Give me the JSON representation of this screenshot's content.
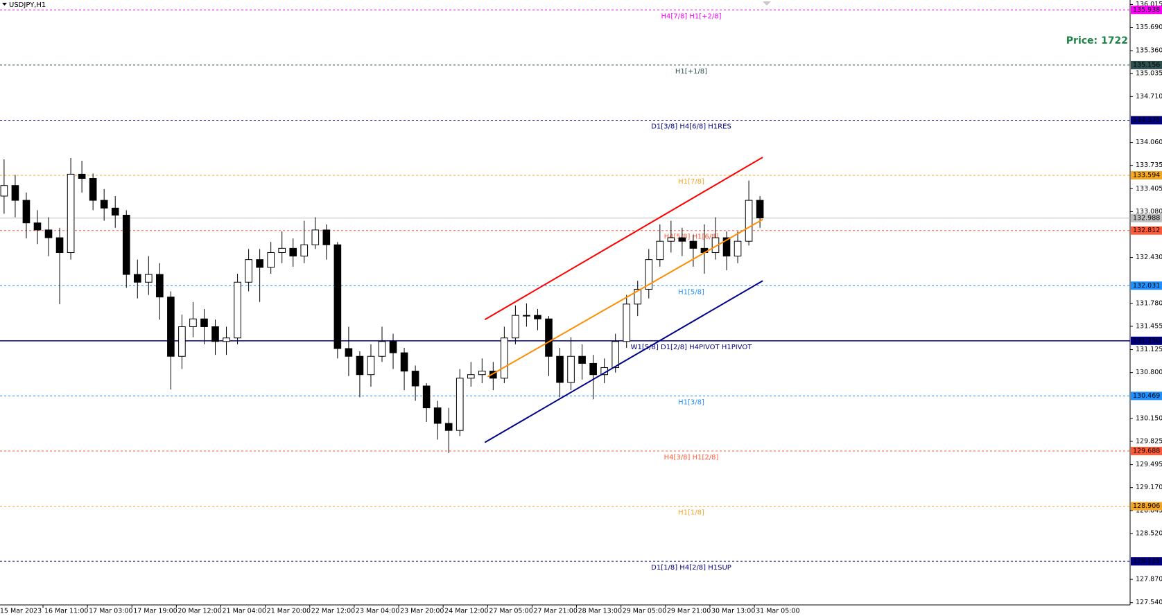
{
  "chart_data": {
    "type": "candlestick",
    "title": "USDJPY,H1",
    "annotation": "Price: 1722",
    "annotation_color": "#1e8449",
    "ylim": [
      127.508,
      136.078
    ],
    "yticks": [
      136.015,
      {
        "value": 135.69,
        "label": "135.690"
      },
      {
        "value": 135.36,
        "label": "135.360"
      },
      135.035,
      {
        "value": 134.71,
        "label": "134.710"
      },
      {
        "value": 134.06,
        "label": "134.060"
      },
      133.735,
      133.405,
      {
        "value": 133.08,
        "label": "133.080"
      },
      {
        "value": 132.43,
        "label": "132.430"
      },
      {
        "value": 131.78,
        "label": "131.780"
      },
      131.455,
      131.125,
      {
        "value": 130.8,
        "label": "130.800"
      },
      {
        "value": 130.15,
        "label": "130.150"
      },
      129.825,
      129.495,
      {
        "value": 129.17,
        "label": "129.170"
      },
      128.845,
      {
        "value": 128.52,
        "label": "128.520"
      },
      {
        "value": 127.87,
        "label": "127.870"
      },
      {
        "value": 127.54,
        "label": "127.540"
      }
    ],
    "xlim": [
      0.53,
      407.2
    ],
    "xticks": [
      {
        "value": 0,
        "label": "15 Mar 2023"
      },
      {
        "value": 16,
        "label": "16 Mar 11:00"
      },
      {
        "value": 32,
        "label": "17 Mar 03:00"
      },
      {
        "value": 48,
        "label": "17 Mar 19:00"
      },
      {
        "value": 64,
        "label": "20 Mar 12:00"
      },
      {
        "value": 80,
        "label": "21 Mar 04:00"
      },
      {
        "value": 96,
        "label": "21 Mar 20:00"
      },
      {
        "value": 112,
        "label": "22 Mar 12:00"
      },
      {
        "value": 128,
        "label": "23 Mar 04:00"
      },
      {
        "value": 144,
        "label": "23 Mar 20:00"
      },
      {
        "value": 160,
        "label": "24 Mar 12:00"
      },
      {
        "value": 176,
        "label": "27 Mar 05:00"
      },
      {
        "value": 192,
        "label": "27 Mar 21:00"
      },
      {
        "value": 208,
        "label": "28 Mar 13:00"
      },
      {
        "value": 224,
        "label": "29 Mar 05:00"
      },
      {
        "value": 240,
        "label": "29 Mar 21:00"
      },
      {
        "value": 256,
        "label": "30 Mar 13:00"
      },
      {
        "value": 272,
        "label": "31 Mar 05:00"
      }
    ],
    "candles": [
      [
        133.3,
        133.82,
        133.05,
        133.45
      ],
      [
        133.45,
        133.6,
        133.0,
        133.24
      ],
      [
        133.24,
        133.35,
        132.7,
        132.92
      ],
      [
        132.92,
        133.1,
        132.62,
        132.82
      ],
      [
        132.82,
        133.0,
        132.45,
        132.71
      ],
      [
        132.71,
        132.85,
        131.77,
        132.5
      ],
      [
        132.5,
        133.84,
        132.4,
        133.61
      ],
      [
        133.61,
        133.8,
        133.35,
        133.55
      ],
      [
        133.55,
        133.62,
        133.1,
        133.24
      ],
      [
        133.24,
        133.4,
        132.95,
        133.13
      ],
      [
        133.13,
        133.3,
        132.85,
        133.03
      ],
      [
        133.03,
        133.1,
        132.0,
        132.19
      ],
      [
        132.19,
        132.4,
        131.85,
        132.08
      ],
      [
        132.08,
        132.45,
        131.9,
        132.19
      ],
      [
        132.19,
        132.35,
        131.55,
        131.87
      ],
      [
        131.87,
        131.95,
        130.56,
        131.03
      ],
      [
        131.03,
        131.62,
        130.85,
        131.45
      ],
      [
        131.45,
        131.8,
        131.3,
        131.56
      ],
      [
        131.56,
        131.7,
        131.2,
        131.45
      ],
      [
        131.45,
        131.55,
        131.05,
        131.24
      ],
      [
        131.24,
        131.45,
        131.05,
        131.29
      ],
      [
        131.29,
        132.2,
        131.2,
        132.08
      ],
      [
        132.08,
        132.55,
        131.95,
        132.4
      ],
      [
        132.4,
        132.55,
        131.8,
        132.29
      ],
      [
        132.29,
        132.65,
        132.2,
        132.5
      ],
      [
        132.5,
        132.8,
        132.35,
        132.56
      ],
      [
        132.56,
        132.7,
        132.3,
        132.45
      ],
      [
        132.45,
        132.95,
        132.35,
        132.61
      ],
      [
        132.61,
        133.0,
        132.55,
        132.82
      ],
      [
        132.82,
        132.9,
        132.4,
        132.61
      ],
      [
        132.61,
        132.65,
        131.0,
        131.14
      ],
      [
        131.14,
        131.45,
        130.75,
        131.03
      ],
      [
        131.03,
        131.1,
        130.45,
        130.77
      ],
      [
        130.77,
        131.2,
        130.6,
        131.03
      ],
      [
        131.03,
        131.45,
        130.95,
        131.24
      ],
      [
        131.24,
        131.35,
        130.85,
        131.08
      ],
      [
        131.08,
        131.15,
        130.55,
        130.82
      ],
      [
        130.82,
        130.9,
        130.4,
        130.61
      ],
      [
        130.61,
        130.65,
        130.1,
        130.3
      ],
      [
        130.3,
        130.4,
        129.85,
        130.08
      ],
      [
        130.08,
        130.3,
        129.66,
        129.98
      ],
      [
        129.98,
        130.85,
        129.9,
        130.72
      ],
      [
        130.72,
        130.95,
        130.6,
        130.77
      ],
      [
        130.77,
        131.0,
        130.65,
        130.82
      ],
      [
        130.82,
        130.95,
        130.55,
        130.72
      ],
      [
        130.72,
        131.45,
        130.65,
        131.29
      ],
      [
        131.29,
        131.75,
        131.2,
        131.61
      ],
      [
        131.61,
        131.78,
        131.45,
        131.61
      ],
      [
        131.61,
        131.7,
        131.4,
        131.56
      ],
      [
        131.56,
        131.6,
        130.75,
        131.03
      ],
      [
        131.03,
        131.15,
        130.45,
        130.66
      ],
      [
        130.66,
        131.3,
        130.55,
        131.03
      ],
      [
        131.03,
        131.2,
        130.7,
        130.93
      ],
      [
        130.93,
        131.05,
        130.42,
        130.77
      ],
      [
        130.77,
        131.0,
        130.65,
        130.87
      ],
      [
        130.87,
        131.35,
        130.8,
        131.24
      ],
      [
        131.24,
        131.9,
        131.15,
        131.77
      ],
      [
        131.77,
        132.1,
        131.6,
        131.98
      ],
      [
        131.98,
        132.55,
        131.85,
        132.4
      ],
      [
        132.4,
        132.9,
        132.3,
        132.66
      ],
      [
        132.66,
        132.95,
        132.5,
        132.71
      ],
      [
        132.71,
        132.85,
        132.45,
        132.66
      ],
      [
        132.66,
        132.75,
        132.3,
        132.56
      ],
      [
        132.56,
        132.9,
        132.2,
        132.5
      ],
      [
        132.5,
        133.0,
        132.4,
        132.71
      ],
      [
        132.71,
        132.8,
        132.25,
        132.45
      ],
      [
        132.45,
        132.8,
        132.35,
        132.66
      ],
      [
        132.66,
        133.52,
        132.6,
        133.24
      ],
      [
        133.24,
        133.3,
        132.85,
        132.99
      ]
    ],
    "levels": [
      {
        "name": "H4[7/8] H1[+2/8]",
        "value": 135.938,
        "value_label": "135.938",
        "color": "#ff00ff",
        "style": "dashed"
      },
      {
        "name": "H1[+1/8]",
        "value": 135.156,
        "value_label": "135.156",
        "color": "#2f4f4f",
        "style": "dashed"
      },
      {
        "name": "D1[3/8] H4[6/8] H1RES",
        "value": 134.375,
        "value_label": "134.375",
        "color": "#000080",
        "style": "dashed"
      },
      {
        "name": "H1[7/8]",
        "value": 133.594,
        "value_label": "133.594",
        "color": "#f5a623",
        "style": "dashed"
      },
      {
        "value": 132.988,
        "value_label": "132.988",
        "color": "#c0c0c0",
        "style": "solid"
      },
      {
        "name": "H4[5/8] H1[6/8]",
        "value": 132.812,
        "value_label": "132.812",
        "color": "#ff5a36",
        "style": "dashed"
      },
      {
        "name": "H1[5/8]",
        "value": 132.031,
        "value_label": "132.031",
        "color": "#1e90ff",
        "style": "dashed"
      },
      {
        "name": "W1[5/8] D1[2/8] H4PIVOT H1PIVOT",
        "value": 131.25,
        "value_label": "131.250",
        "color": "#000080",
        "style": "solid"
      },
      {
        "name": "H1[3/8]",
        "value": 130.469,
        "value_label": "130.469",
        "color": "#1e90ff",
        "style": "dashed"
      },
      {
        "name": "H4[3/8] H1[2/8]",
        "value": 129.688,
        "value_label": "129.688",
        "color": "#ff5a36",
        "style": "dashed"
      },
      {
        "name": "H1[1/8]",
        "value": 128.906,
        "value_label": "128.906",
        "color": "#f5a623",
        "style": "dashed"
      },
      {
        "name": "D1[1/8] H4[2/8] H1SUP",
        "value": 128.125,
        "value_label": "128.125",
        "color": "#000080",
        "style": "dashed"
      }
    ],
    "channel": [
      {
        "color": "#ff0000",
        "x": [
          175,
          275
        ],
        "values": [
          131.55,
          133.85
        ]
      },
      {
        "color": "#ff8c00",
        "x": [
          176,
          275
        ],
        "values": [
          130.74,
          132.97
        ]
      },
      {
        "color": "#00008b",
        "x": [
          175,
          275
        ],
        "values": [
          129.81,
          132.1
        ]
      }
    ]
  }
}
